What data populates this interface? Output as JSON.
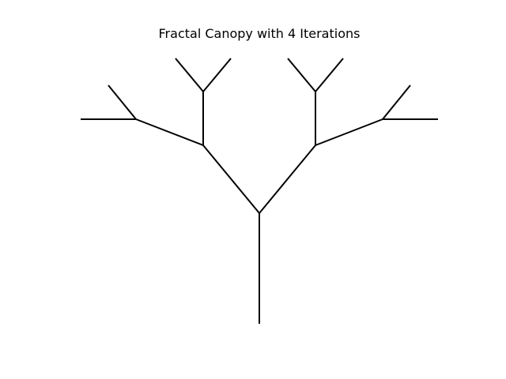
{
  "title": "Fractal Canopy with 4 Iterations",
  "canopy": {
    "iterations": 4,
    "line_color": "#000000",
    "background_color": "#ffffff"
  }
}
